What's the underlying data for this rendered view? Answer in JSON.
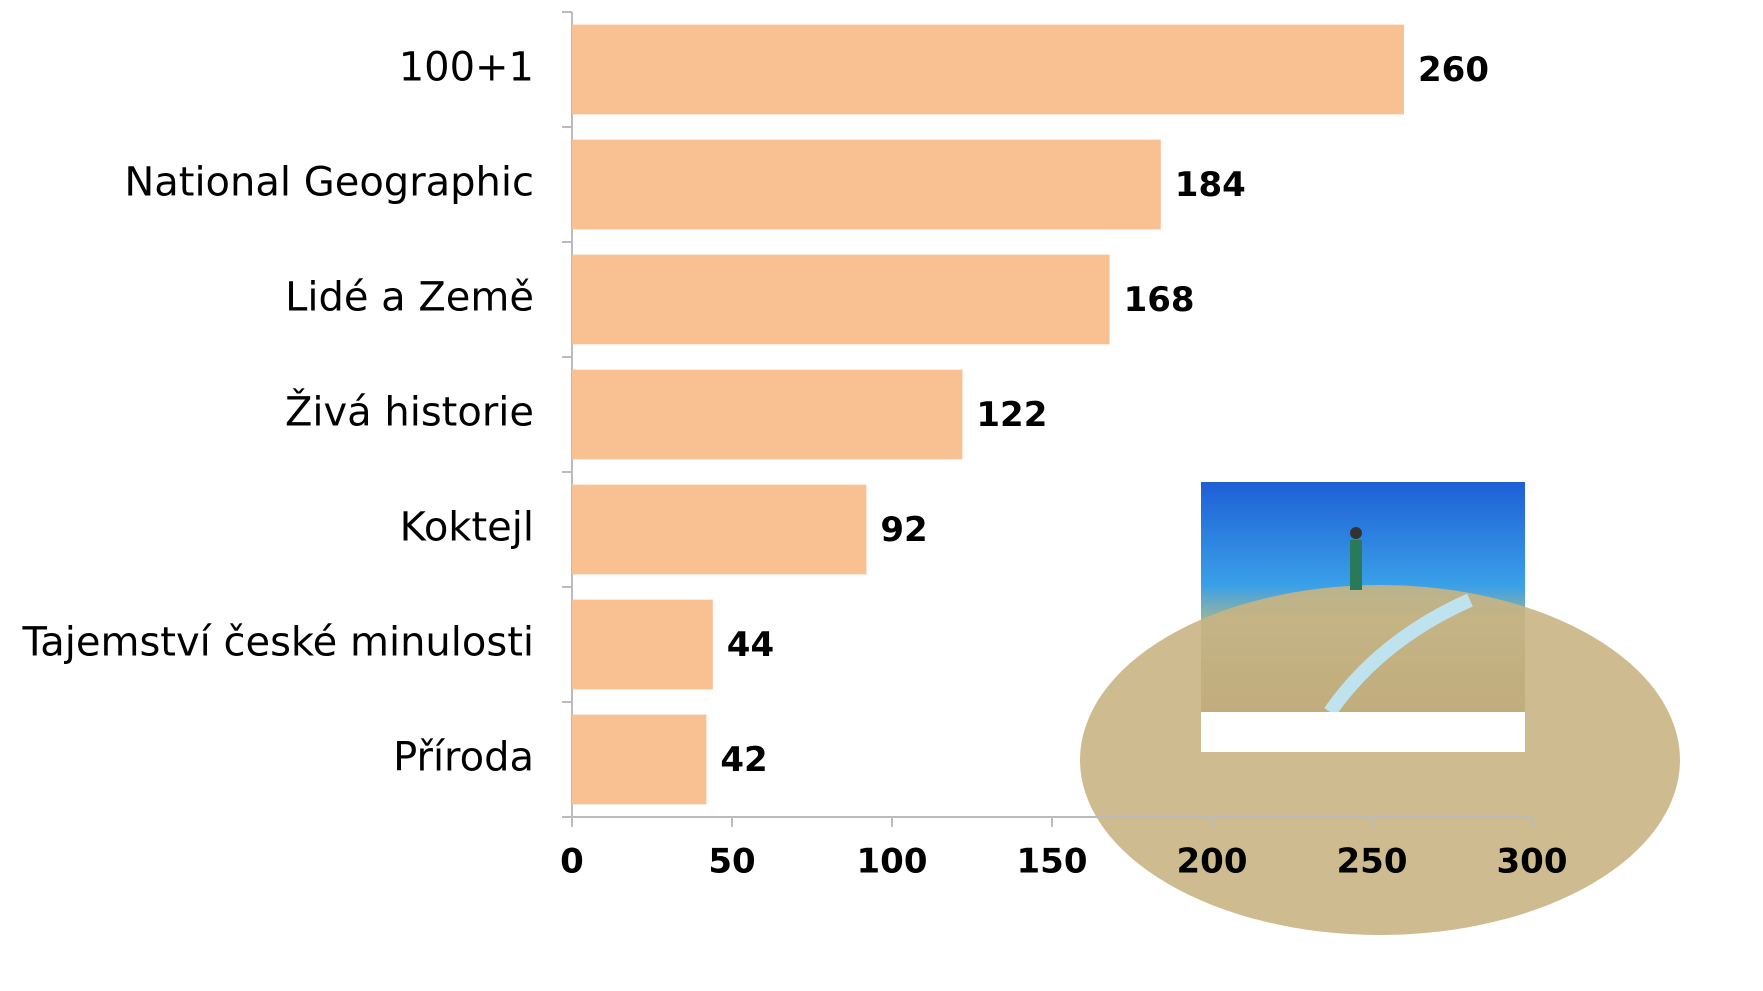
{
  "chart_data": {
    "type": "bar",
    "orientation": "horizontal",
    "categories": [
      "100+1",
      "National Geographic",
      "Lidé a Země",
      "Živá historie",
      "Koktejl",
      "Tajemství české minulosti",
      "Příroda"
    ],
    "values": [
      260,
      184,
      168,
      122,
      92,
      44,
      42
    ],
    "color": "#f9c192",
    "xlim": [
      0,
      300
    ],
    "xticks": [
      0,
      50,
      100,
      150,
      200,
      250,
      300
    ]
  }
}
